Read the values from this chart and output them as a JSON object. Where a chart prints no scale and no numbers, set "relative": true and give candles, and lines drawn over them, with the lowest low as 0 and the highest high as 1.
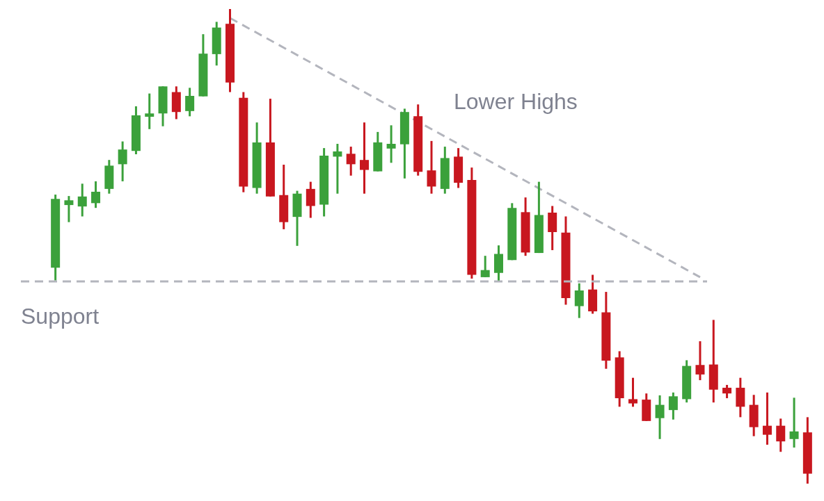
{
  "chart_data": {
    "type": "candlestick",
    "relative": true,
    "tick_labels": false,
    "categories": [
      null,
      null,
      null,
      null,
      null,
      null,
      null,
      null,
      null,
      null,
      null,
      null,
      null,
      null,
      null,
      null,
      null,
      null,
      null,
      null,
      null,
      null,
      null,
      null,
      null,
      null,
      null,
      null,
      null,
      null,
      null,
      null,
      null,
      null,
      null,
      null,
      null,
      null,
      null,
      null,
      null,
      null,
      null,
      null,
      null,
      null,
      null,
      null,
      null,
      null,
      null,
      null,
      null,
      null,
      null,
      null,
      null
    ],
    "ohlc": [
      [
        0.455,
        0.609,
        0.428,
        0.6
      ],
      [
        0.587,
        0.606,
        0.551,
        0.597
      ],
      [
        0.584,
        0.632,
        0.563,
        0.605
      ],
      [
        0.591,
        0.637,
        0.581,
        0.615
      ],
      [
        0.621,
        0.682,
        0.611,
        0.67
      ],
      [
        0.673,
        0.721,
        0.637,
        0.704
      ],
      [
        0.701,
        0.795,
        0.694,
        0.776
      ],
      [
        0.773,
        0.822,
        0.747,
        0.78
      ],
      [
        0.78,
        0.837,
        0.753,
        0.837
      ],
      [
        0.825,
        0.837,
        0.768,
        0.783
      ],
      [
        0.785,
        0.834,
        0.774,
        0.817
      ],
      [
        0.816,
        0.947,
        0.816,
        0.906
      ],
      [
        0.905,
        0.973,
        0.881,
        0.961
      ],
      [
        0.969,
        1,
        0.825,
        0.845
      ],
      [
        0.813,
        0.825,
        0.614,
        0.626
      ],
      [
        0.623,
        0.761,
        0.611,
        0.719
      ],
      [
        0.719,
        0.811,
        0.605,
        0.605
      ],
      [
        0.608,
        0.672,
        0.536,
        0.551
      ],
      [
        0.562,
        0.617,
        0.501,
        0.611
      ],
      [
        0.621,
        0.636,
        0.56,
        0.585
      ],
      [
        0.588,
        0.707,
        0.563,
        0.691
      ],
      [
        0.689,
        0.716,
        0.611,
        0.7
      ],
      [
        0.695,
        0.71,
        0.649,
        0.673
      ],
      [
        0.682,
        0.761,
        0.611,
        0.661
      ],
      [
        0.658,
        0.741,
        0.658,
        0.719
      ],
      [
        0.706,
        0.755,
        0.676,
        0.716
      ],
      [
        0.715,
        0.79,
        0.643,
        0.783
      ],
      [
        0.774,
        0.799,
        0.649,
        0.657
      ],
      [
        0.66,
        0.722,
        0.611,
        0.626
      ],
      [
        0.621,
        0.71,
        0.611,
        0.686
      ],
      [
        0.689,
        0.707,
        0.623,
        0.634
      ],
      [
        0.64,
        0.666,
        0.432,
        0.44
      ],
      [
        0.435,
        0.48,
        0.435,
        0.45
      ],
      [
        0.444,
        0.502,
        0.426,
        0.484
      ],
      [
        0.471,
        0.591,
        0.471,
        0.581
      ],
      [
        0.572,
        0.603,
        0.48,
        0.487
      ],
      [
        0.486,
        0.636,
        0.486,
        0.566
      ],
      [
        0.571,
        0.585,
        0.492,
        0.53
      ],
      [
        0.529,
        0.563,
        0.377,
        0.391
      ],
      [
        0.374,
        0.422,
        0.349,
        0.407
      ],
      [
        0.409,
        0.44,
        0.358,
        0.363
      ],
      [
        0.361,
        0.404,
        0.242,
        0.259
      ],
      [
        0.266,
        0.279,
        0.162,
        0.18
      ],
      [
        0.178,
        0.223,
        0.162,
        0.169
      ],
      [
        0.177,
        0.19,
        0.132,
        0.132
      ],
      [
        0.138,
        0.186,
        0.094,
        0.166
      ],
      [
        0.155,
        0.192,
        0.135,
        0.184
      ],
      [
        0.178,
        0.26,
        0.171,
        0.248
      ],
      [
        0.25,
        0.3,
        0.218,
        0.23
      ],
      [
        0.251,
        0.345,
        0.171,
        0.198
      ],
      [
        0.202,
        0.208,
        0.18,
        0.19
      ],
      [
        0.202,
        0.223,
        0.14,
        0.162
      ],
      [
        0.166,
        0.187,
        0.1,
        0.119
      ],
      [
        0.122,
        0.192,
        0.082,
        0.103
      ],
      [
        0.122,
        0.137,
        0.067,
        0.089
      ],
      [
        0.094,
        0.181,
        0.076,
        0.11
      ],
      [
        0.108,
        0.14,
        0,
        0.021
      ]
    ],
    "colors": [
      "#3ba13b",
      "#3ba13b",
      "#3ba13b",
      "#3ba13b",
      "#3ba13b",
      "#3ba13b",
      "#3ba13b",
      "#3ba13b",
      "#3ba13b",
      "#c8171f",
      "#3ba13b",
      "#3ba13b",
      "#3ba13b",
      "#c8171f",
      "#c8171f",
      "#3ba13b",
      "#c8171f",
      "#c8171f",
      "#3ba13b",
      "#c8171f",
      "#3ba13b",
      "#3ba13b",
      "#c8171f",
      "#c8171f",
      "#3ba13b",
      "#3ba13b",
      "#3ba13b",
      "#c8171f",
      "#c8171f",
      "#3ba13b",
      "#c8171f",
      "#c8171f",
      "#3ba13b",
      "#3ba13b",
      "#3ba13b",
      "#c8171f",
      "#3ba13b",
      "#c8171f",
      "#c8171f",
      "#3ba13b",
      "#c8171f",
      "#c8171f",
      "#c8171f",
      "#c8171f",
      "#c8171f",
      "#3ba13b",
      "#3ba13b",
      "#3ba13b",
      "#c8171f",
      "#c8171f",
      "#c8171f",
      "#c8171f",
      "#c8171f",
      "#c8171f",
      "#c8171f",
      "#3ba13b",
      "#c8171f"
    ],
    "series": [
      {
        "type": "line",
        "color": "#b3b5bd",
        "line_style": "dashed",
        "values": [
          null,
          null,
          null,
          null,
          null,
          null,
          null,
          null,
          null,
          null,
          null,
          null,
          null,
          0.981,
          null,
          null,
          null,
          null,
          null,
          null,
          null,
          null,
          null,
          null,
          null,
          null,
          null,
          null,
          null,
          null,
          null,
          null,
          null,
          null,
          null,
          null,
          null,
          null,
          null,
          null,
          null,
          null,
          null,
          null,
          null,
          null,
          null,
          null,
          0.435,
          null,
          null,
          null,
          null,
          null,
          null,
          null,
          null
        ]
      }
    ],
    "ref_lines": [
      {
        "axis": "y",
        "value": 0.426,
        "label": "Support",
        "color": "#b3b5bd",
        "line_style": "dashed"
      }
    ],
    "annotations": [
      "Lower Highs"
    ]
  }
}
